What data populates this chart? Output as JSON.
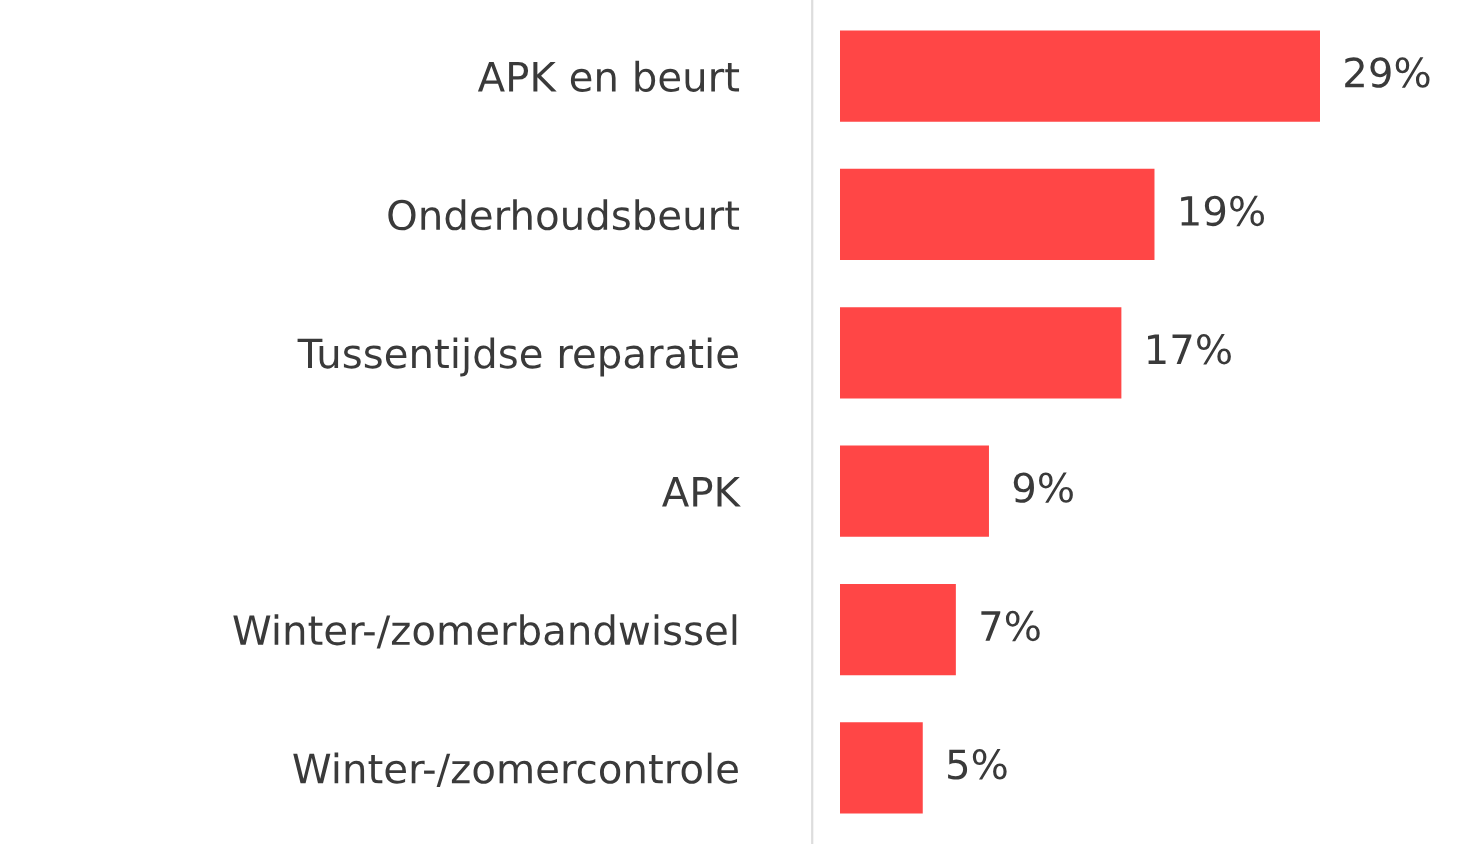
{
  "chart_data": {
    "type": "bar",
    "orientation": "horizontal",
    "categories": [
      "APK en beurt",
      "Onderhoudsbeurt",
      "Tussentijdse reparatie",
      "APK",
      "Winter-/zomerbandwissel",
      "Winter-/zomercontrole"
    ],
    "values": [
      29,
      19,
      17,
      9,
      7,
      5
    ],
    "value_labels": [
      "29%",
      "19%",
      "17%",
      "9%",
      "7%",
      "5%"
    ],
    "color": "#ff4646",
    "grid": false,
    "legend": false
  }
}
